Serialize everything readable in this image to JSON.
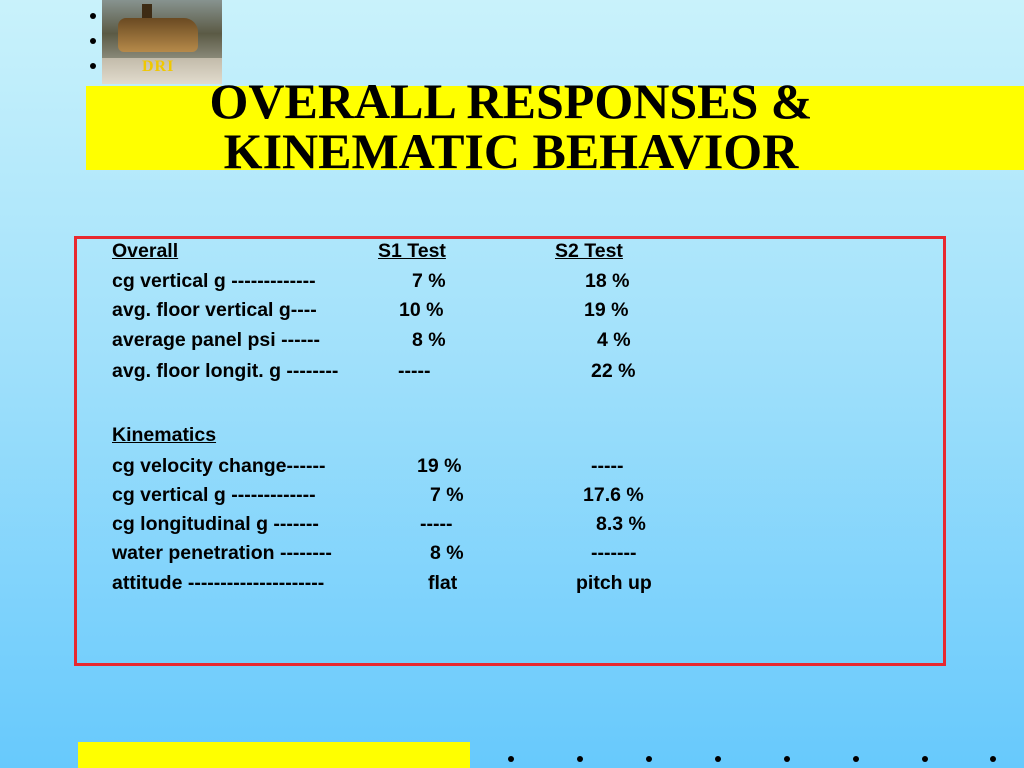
{
  "logo": {
    "label": "DRI"
  },
  "title": {
    "line1": "OVERALL RESPONSES &",
    "line2": "KINEMATIC BEHAVIOR"
  },
  "table": {
    "overall_header": {
      "col0": "Overall",
      "col1": "S1 Test",
      "col2": "S2 Test"
    },
    "overall_rows": [
      {
        "label": "cg vertical g -------------",
        "s1": "7 %",
        "s2": "18 %"
      },
      {
        "label": "avg. floor vertical g----",
        "s1": "10 %",
        "s2": "19 %"
      },
      {
        "label": "average panel psi ------",
        "s1": "8 %",
        "s2": "4 %"
      },
      {
        "label": "avg. floor longit. g --------",
        "s1": "-----",
        "s2": "22 %"
      }
    ],
    "kinematics_header": "Kinematics",
    "kinematics_rows": [
      {
        "label": "cg velocity change------",
        "s1": "19 %",
        "s2": "-----"
      },
      {
        "label": "cg vertical g -------------",
        "s1": "7 %",
        "s2": "17.6 %"
      },
      {
        "label": "cg longitudinal g -------",
        "s1": "-----",
        "s2": "8.3 %"
      },
      {
        "label": "water penetration --------",
        "s1": "8 %",
        "s2": "-------"
      },
      {
        "label": "attitude ---------------------",
        "s1": "flat",
        "s2": "pitch up"
      }
    ]
  }
}
